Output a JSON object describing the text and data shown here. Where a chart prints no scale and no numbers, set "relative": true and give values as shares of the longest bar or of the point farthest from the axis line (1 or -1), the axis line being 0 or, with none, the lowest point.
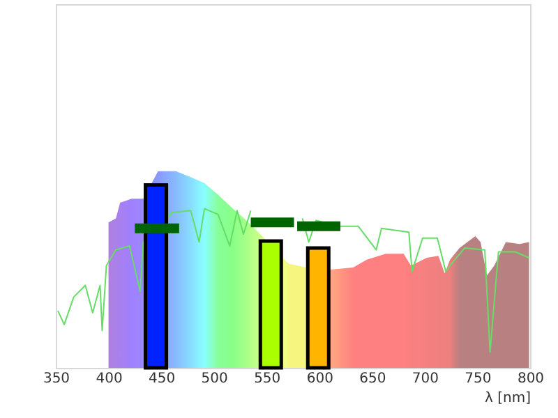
{
  "chart_data": {
    "type": "area",
    "relative": true,
    "xlabel": "λ [nm]",
    "xlim": [
      350,
      800
    ],
    "xticks": [
      350,
      400,
      450,
      500,
      550,
      600,
      650,
      700,
      750,
      800
    ],
    "grid": false,
    "series": [
      {
        "x": [
          400,
          400,
          407,
          411,
          422,
          433,
          447,
          464,
          478,
          491,
          504,
          518,
          531,
          544,
          567,
          571,
          588,
          610,
          632,
          645,
          663,
          680,
          687,
          702,
          713,
          719,
          724,
          733,
          748,
          753,
          759,
          766,
          777,
          790,
          799,
          799
        ],
        "values": [
          0,
          0.74,
          0.76,
          0.84,
          0.86,
          0.86,
          1.0,
          1.0,
          0.97,
          0.94,
          0.88,
          0.81,
          0.75,
          0.68,
          0.55,
          0.53,
          0.51,
          0.5,
          0.51,
          0.55,
          0.58,
          0.58,
          0.52,
          0.56,
          0.57,
          0.48,
          0.55,
          0.61,
          0.67,
          0.64,
          0.47,
          0.52,
          0.64,
          0.63,
          0.64,
          0
        ],
        "colors": [
          "#b080e0",
          "#b080e0",
          "#aa80e8",
          "#a880f0",
          "#a080ff",
          "#9a88ff",
          "#8899ff",
          "#88bbff",
          "#88ddff",
          "#88ffff",
          "#88ff99",
          "#88ff88",
          "#a8ff88",
          "#ccff88",
          "#eeff88",
          "#f5f580",
          "#f5f580",
          "#ffaa80",
          "#ff8080",
          "#ff8080",
          "#ff8080",
          "#ff8080",
          "#fa8080",
          "#f48080",
          "#f08080",
          "#ee8080",
          "#ee7f7f",
          "#b88080",
          "#b88080",
          "#b88080",
          "#b88080",
          "#b88080",
          "#b88080",
          "#b88080",
          "#b88080",
          "#b88080"
        ]
      },
      {
        "type": "line",
        "color": "#66dd66",
        "x": [
          352,
          358,
          367,
          378,
          385,
          392,
          394,
          398,
          407,
          420,
          430,
          433,
          457,
          460,
          478,
          486,
          491,
          504,
          515,
          522,
          528,
          535,
          548,
          561,
          584,
          590,
          597,
          619,
          637,
          654,
          659,
          685,
          688,
          698,
          712,
          720,
          727,
          738,
          757,
          762,
          770,
          786,
          799
        ],
        "values": [
          0.29,
          0.22,
          0.36,
          0.42,
          0.28,
          0.42,
          0.19,
          0.52,
          0.6,
          0.62,
          0.39,
          0.64,
          0.77,
          0.79,
          0.8,
          0.64,
          0.81,
          0.78,
          0.62,
          0.8,
          0.68,
          0.8,
          null,
          null,
          0.76,
          0.64,
          0.75,
          0.72,
          0.72,
          0.6,
          0.71,
          0.69,
          0.49,
          0.66,
          0.66,
          0.49,
          0.54,
          0.61,
          0.6,
          0.08,
          0.59,
          0.59,
          0.56
        ]
      },
      {
        "type": "bar",
        "x": [
          445,
          554,
          599
        ],
        "values": [
          0.93,
          0.645,
          0.61
        ],
        "colors": [
          "#0022ff",
          "#aaff00",
          "#ffb400"
        ]
      },
      {
        "type": "line",
        "color": "#006400",
        "x": [
          425,
          467
        ],
        "values": [
          0.71,
          0.71
        ]
      },
      {
        "type": "line",
        "color": "#006400",
        "x": [
          535,
          576
        ],
        "values": [
          0.74,
          0.74
        ]
      },
      {
        "type": "line",
        "color": "#006400",
        "x": [
          579,
          620
        ],
        "values": [
          0.72,
          0.72
        ]
      }
    ]
  }
}
